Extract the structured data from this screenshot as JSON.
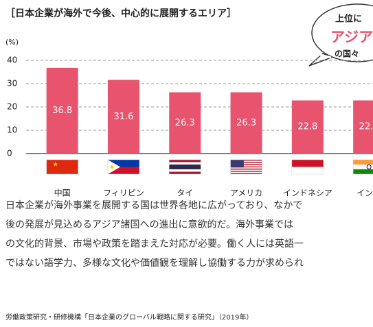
{
  "chart_data": {
    "type": "bar",
    "title": "［日本企業が海外で今後、中心的に展開するエリア］",
    "y_label": "(%)",
    "categories": [
      "中国",
      "フィリピン",
      "タイ",
      "アメリカ",
      "インドネシア",
      "インド"
    ],
    "values": [
      36.8,
      31.6,
      26.3,
      26.3,
      22.8,
      22.8
    ],
    "color": "#e8546e",
    "ylim": [
      0,
      40
    ],
    "yticks": [
      0,
      10,
      20,
      30,
      40
    ],
    "grid": true
  },
  "callout": [
    "上位に",
    "アジア",
    "の国々"
  ],
  "body": [
    "日本企業が海外事業を展開する国は世界各地に広がっており、なかで",
    "後の発展が見込めるアジア諸国への進出に意欲的だ。海外事業では",
    "の文化的背景、市場や政策を踏まえた対応が必要。働く人には英語一",
    "ではない語学力、多様な文化や価値観を理解し協働する力が求められ"
  ],
  "source": "労働政策研究・研修機構「日本企業のグローバル戦略に関する研究」（2019年）"
}
